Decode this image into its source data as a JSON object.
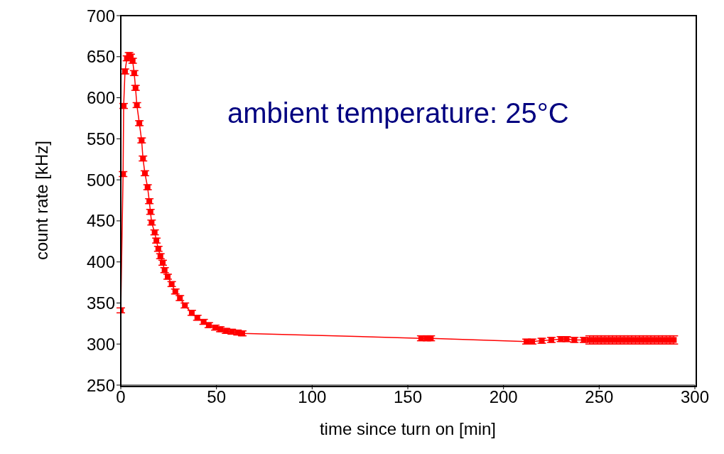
{
  "chart_data": {
    "type": "line",
    "xlabel": "time since turn on [min]",
    "ylabel": "count rate [kHz]",
    "annotations": [
      "ambient temperature: 25°C"
    ],
    "xlim": [
      0,
      300
    ],
    "xticks": [
      0,
      50,
      100,
      150,
      200,
      250,
      300
    ],
    "ylim": [
      250,
      700
    ],
    "yticks": [
      250,
      300,
      350,
      400,
      450,
      500,
      550,
      600,
      650,
      700
    ],
    "grid": false,
    "legend": false,
    "marker": "square",
    "line_style": "solid",
    "series": [
      {
        "color": "#ff0000",
        "x": [
          0,
          1.2,
          1.5,
          2.2,
          3.2,
          4.3,
          5.2,
          6.2,
          7.0,
          7.7,
          8.4,
          9.7,
          10.9,
          11.6,
          12.6,
          14,
          14.9,
          15.5,
          16.1,
          17.7,
          18.6,
          19.6,
          20.7,
          21.9,
          22.9,
          24.5,
          26.6,
          28.5,
          30.9,
          33.5,
          37.1,
          40,
          43.3,
          46,
          49.4,
          52,
          55,
          58,
          61,
          63.5,
          157,
          160,
          162,
          212,
          215,
          220,
          225,
          230,
          233,
          237,
          242,
          245,
          247,
          249,
          251,
          253,
          255,
          257,
          259,
          261,
          263,
          265,
          267,
          269,
          271,
          273,
          275,
          277,
          279,
          281,
          283,
          285,
          287,
          289
        ],
        "values": [
          341,
          507,
          590,
          632,
          648,
          652,
          650,
          645,
          630,
          612,
          591,
          569,
          548,
          526,
          508,
          491,
          474,
          461,
          448,
          436,
          426,
          416,
          407,
          399,
          390,
          382,
          373,
          364,
          356,
          347,
          338,
          332,
          327,
          323,
          320,
          318,
          316,
          315,
          314,
          313,
          307,
          307,
          307,
          303,
          303,
          304,
          305,
          306,
          306,
          305,
          305,
          305,
          305,
          305,
          305,
          305,
          305,
          305,
          305,
          305,
          305,
          305,
          305,
          305,
          305,
          305,
          305,
          305,
          305,
          305,
          305,
          305,
          305,
          305
        ],
        "errors": [
          3,
          3,
          3,
          3,
          3,
          3,
          3,
          3,
          3,
          3,
          3,
          3,
          3,
          3,
          3,
          3,
          3,
          3,
          3,
          3,
          3,
          3,
          3,
          3,
          3,
          3,
          3,
          3,
          3,
          3,
          3,
          3,
          3,
          3,
          3,
          3,
          3,
          3,
          3,
          3,
          3,
          3,
          3,
          3,
          3,
          3,
          3,
          3,
          3,
          3,
          3,
          5,
          5,
          5,
          5,
          5,
          5,
          5,
          5,
          5,
          5,
          5,
          5,
          5,
          5,
          5,
          5,
          5,
          5,
          5,
          5,
          5,
          5,
          5
        ]
      }
    ]
  }
}
